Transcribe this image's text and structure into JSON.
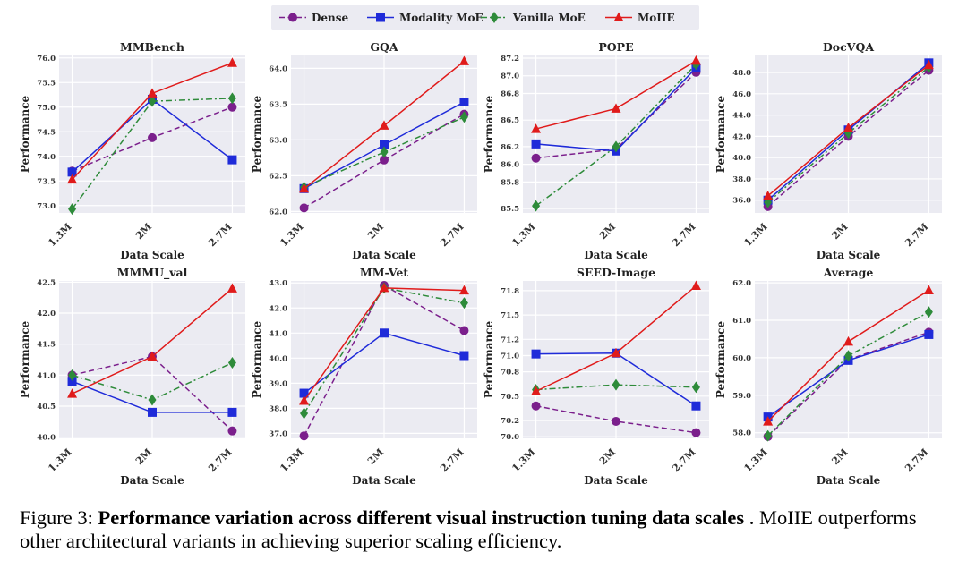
{
  "figure": {
    "x_label": "Data Scale",
    "y_label": "Performance",
    "x_categories": [
      "1.3M",
      "2M",
      "2.7M"
    ]
  },
  "legend": [
    {
      "name": "Dense",
      "color": "#7b1f8c",
      "marker": "circle",
      "dash": "dashed"
    },
    {
      "name": "Modality MoE",
      "color": "#1f2bd9",
      "marker": "square",
      "dash": "solid"
    },
    {
      "name": "Vanilla MoE",
      "color": "#2e8b3a",
      "marker": "diamond",
      "dash": "dashdot"
    },
    {
      "name": "MoIIE",
      "color": "#e01b1b",
      "marker": "triangle",
      "dash": "solid"
    }
  ],
  "chart_data": [
    {
      "type": "line",
      "title": "MMBench",
      "categories": [
        "1.3M",
        "2M",
        "2.7M"
      ],
      "ylim": [
        72.85,
        76.05
      ],
      "yticks": [
        "73.0",
        "73.5",
        "74.0",
        "74.5",
        "75.0",
        "75.5",
        "76.0"
      ],
      "series": [
        {
          "name": "Dense",
          "values": [
            73.7,
            74.38,
            75.0
          ]
        },
        {
          "name": "Modality MoE",
          "values": [
            73.68,
            75.16,
            73.93
          ]
        },
        {
          "name": "Vanilla MoE",
          "values": [
            72.93,
            75.12,
            75.18
          ]
        },
        {
          "name": "MoIIE",
          "values": [
            73.53,
            75.28,
            75.9
          ]
        }
      ]
    },
    {
      "type": "line",
      "title": "GQA",
      "categories": [
        "1.3M",
        "2M",
        "2.7M"
      ],
      "ylim": [
        61.98,
        64.18
      ],
      "yticks": [
        "62.0",
        "62.5",
        "63.0",
        "63.5",
        "64.0"
      ],
      "series": [
        {
          "name": "Dense",
          "values": [
            62.05,
            62.72,
            63.36
          ]
        },
        {
          "name": "Modality MoE",
          "values": [
            62.32,
            62.93,
            63.53
          ]
        },
        {
          "name": "Vanilla MoE",
          "values": [
            62.34,
            62.83,
            63.32
          ]
        },
        {
          "name": "MoIIE",
          "values": [
            62.32,
            63.2,
            64.1
          ]
        }
      ]
    },
    {
      "type": "line",
      "title": "POPE",
      "categories": [
        "1.3M",
        "2M",
        "2.7M"
      ],
      "ylim": [
        85.45,
        87.23
      ],
      "yticks": [
        "85.5",
        "85.8",
        "86.0",
        "86.2",
        "86.5",
        "86.8",
        "87.0",
        "87.2"
      ],
      "series": [
        {
          "name": "Dense",
          "values": [
            86.07,
            86.17,
            87.04
          ]
        },
        {
          "name": "Modality MoE",
          "values": [
            86.23,
            86.15,
            87.09
          ]
        },
        {
          "name": "Vanilla MoE",
          "values": [
            85.53,
            86.2,
            87.13
          ]
        },
        {
          "name": "MoIIE",
          "values": [
            86.4,
            86.63,
            87.17
          ]
        }
      ]
    },
    {
      "type": "line",
      "title": "DocVQA",
      "categories": [
        "1.3M",
        "2M",
        "2.7M"
      ],
      "ylim": [
        34.8,
        49.6
      ],
      "yticks": [
        "36.0",
        "38.0",
        "40.0",
        "42.0",
        "44.0",
        "46.0",
        "48.0"
      ],
      "series": [
        {
          "name": "Dense",
          "values": [
            35.4,
            42.0,
            48.2
          ]
        },
        {
          "name": "Modality MoE",
          "values": [
            36.0,
            42.6,
            48.9
          ]
        },
        {
          "name": "Vanilla MoE",
          "values": [
            35.8,
            42.3,
            48.5
          ]
        },
        {
          "name": "MoIIE",
          "values": [
            36.4,
            42.8,
            48.7
          ]
        }
      ]
    },
    {
      "type": "line",
      "title": "MMMU_val",
      "categories": [
        "1.3M",
        "2M",
        "2.7M"
      ],
      "ylim": [
        39.98,
        42.52
      ],
      "yticks": [
        "40.0",
        "40.5",
        "41.0",
        "41.5",
        "42.0",
        "42.5"
      ],
      "series": [
        {
          "name": "Dense",
          "values": [
            41.0,
            41.3,
            40.1
          ]
        },
        {
          "name": "Modality MoE",
          "values": [
            40.9,
            40.4,
            40.4
          ]
        },
        {
          "name": "Vanilla MoE",
          "values": [
            41.0,
            40.6,
            41.2
          ]
        },
        {
          "name": "MoIIE",
          "values": [
            40.7,
            41.3,
            42.4
          ]
        }
      ]
    },
    {
      "type": "line",
      "title": "MM-Vet",
      "categories": [
        "1.3M",
        "2M",
        "2.7M"
      ],
      "ylim": [
        36.8,
        43.08
      ],
      "yticks": [
        "37.0",
        "38.0",
        "39.0",
        "40.0",
        "41.0",
        "42.0",
        "43.0"
      ],
      "series": [
        {
          "name": "Dense",
          "values": [
            36.9,
            42.9,
            41.1
          ]
        },
        {
          "name": "Modality MoE",
          "values": [
            38.6,
            41.0,
            40.1
          ]
        },
        {
          "name": "Vanilla MoE",
          "values": [
            37.8,
            42.8,
            42.2
          ]
        },
        {
          "name": "MoIIE",
          "values": [
            38.3,
            42.8,
            42.7
          ]
        }
      ]
    },
    {
      "type": "line",
      "title": "SEED-Image",
      "categories": [
        "1.3M",
        "2M",
        "2.7M"
      ],
      "ylim": [
        69.98,
        71.92
      ],
      "yticks": [
        "70.0",
        "70.2",
        "70.5",
        "70.8",
        "71.0",
        "71.2",
        "71.5",
        "71.8"
      ],
      "series": [
        {
          "name": "Dense",
          "values": [
            70.38,
            70.19,
            70.05
          ]
        },
        {
          "name": "Modality MoE",
          "values": [
            71.02,
            71.03,
            70.38
          ]
        },
        {
          "name": "Vanilla MoE",
          "values": [
            70.58,
            70.64,
            70.61
          ]
        },
        {
          "name": "MoIIE",
          "values": [
            70.56,
            71.03,
            71.86
          ]
        }
      ]
    },
    {
      "type": "line",
      "title": "Average",
      "categories": [
        "1.3M",
        "2M",
        "2.7M"
      ],
      "ylim": [
        57.85,
        62.05
      ],
      "yticks": [
        "58.0",
        "59.0",
        "60.0",
        "61.0",
        "62.0"
      ],
      "series": [
        {
          "name": "Dense",
          "values": [
            57.9,
            59.95,
            60.68
          ]
        },
        {
          "name": "Modality MoE",
          "values": [
            58.42,
            59.93,
            60.62
          ]
        },
        {
          "name": "Vanilla MoE",
          "values": [
            57.92,
            60.05,
            61.22
          ]
        },
        {
          "name": "MoIIE",
          "values": [
            58.3,
            60.43,
            61.8
          ]
        }
      ]
    }
  ],
  "caption": {
    "label": "Figure 3: ",
    "bold": "Performance variation across different visual instruction tuning data scales",
    "rest": " . MoIIE outperforms other architectural variants in achieving superior scaling efficiency."
  }
}
